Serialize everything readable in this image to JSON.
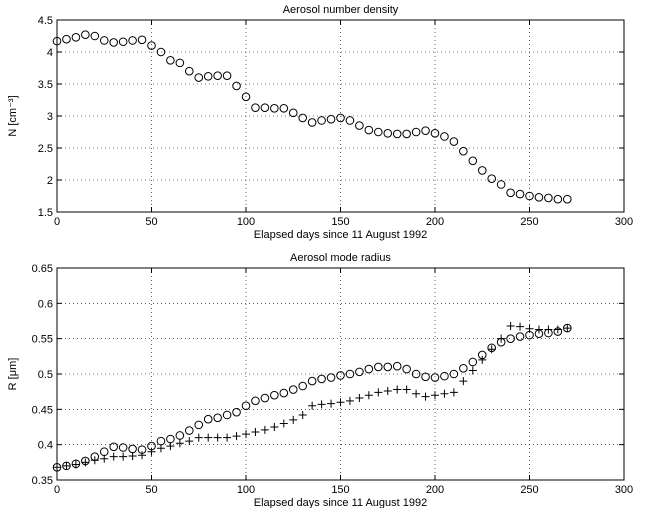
{
  "chart_data": [
    {
      "type": "scatter",
      "title": "Aerosol number density",
      "xlabel": "Elapsed days since 11 August 1992",
      "ylabel": "N [cm⁻³]",
      "x": [
        0,
        5,
        10,
        15,
        20,
        25,
        30,
        35,
        40,
        45,
        50,
        55,
        60,
        65,
        70,
        75,
        80,
        85,
        90,
        95,
        100,
        105,
        110,
        115,
        120,
        125,
        130,
        135,
        140,
        145,
        150,
        155,
        160,
        165,
        170,
        175,
        180,
        185,
        190,
        195,
        200,
        205,
        210,
        215,
        220,
        225,
        230,
        235,
        240,
        245,
        250,
        255,
        260,
        265,
        270
      ],
      "series": [
        {
          "marker": "circle",
          "color": "#000000",
          "values": [
            4.17,
            4.2,
            4.23,
            4.27,
            4.25,
            4.18,
            4.15,
            4.16,
            4.18,
            4.19,
            4.1,
            4.0,
            3.87,
            3.83,
            3.7,
            3.6,
            3.62,
            3.63,
            3.63,
            3.47,
            3.3,
            3.13,
            3.13,
            3.12,
            3.12,
            3.05,
            2.97,
            2.9,
            2.93,
            2.95,
            2.97,
            2.93,
            2.85,
            2.78,
            2.75,
            2.73,
            2.72,
            2.72,
            2.75,
            2.77,
            2.73,
            2.68,
            2.6,
            2.45,
            2.3,
            2.15,
            2.02,
            1.93,
            1.8,
            1.78,
            1.75,
            1.73,
            1.72,
            1.7,
            1.7
          ]
        }
      ],
      "xlim": [
        0,
        300
      ],
      "xticks": [
        0,
        50,
        100,
        150,
        200,
        250,
        300
      ],
      "ylim": [
        1.5,
        4.5
      ],
      "yticks": [
        1.5,
        2,
        2.5,
        3,
        3.5,
        4,
        4.5
      ],
      "grid": true
    },
    {
      "type": "scatter",
      "title": "Aerosol mode radius",
      "xlabel": "Elapsed days since 11 August 1992",
      "ylabel": "R [μm]",
      "x": [
        0,
        5,
        10,
        15,
        20,
        25,
        30,
        35,
        40,
        45,
        50,
        55,
        60,
        65,
        70,
        75,
        80,
        85,
        90,
        95,
        100,
        105,
        110,
        115,
        120,
        125,
        130,
        135,
        140,
        145,
        150,
        155,
        160,
        165,
        170,
        175,
        180,
        185,
        190,
        195,
        200,
        205,
        210,
        215,
        220,
        225,
        230,
        235,
        240,
        245,
        250,
        255,
        260,
        265,
        270
      ],
      "series": [
        {
          "marker": "circle",
          "color": "#000000",
          "values": [
            0.368,
            0.37,
            0.373,
            0.377,
            0.383,
            0.39,
            0.397,
            0.396,
            0.394,
            0.393,
            0.398,
            0.405,
            0.408,
            0.413,
            0.42,
            0.428,
            0.436,
            0.438,
            0.442,
            0.446,
            0.455,
            0.462,
            0.466,
            0.47,
            0.473,
            0.478,
            0.483,
            0.49,
            0.493,
            0.495,
            0.498,
            0.5,
            0.503,
            0.507,
            0.51,
            0.51,
            0.511,
            0.507,
            0.5,
            0.496,
            0.495,
            0.497,
            0.5,
            0.508,
            0.517,
            0.527,
            0.537,
            0.545,
            0.55,
            0.553,
            0.555,
            0.557,
            0.558,
            0.56,
            0.565
          ]
        },
        {
          "marker": "plus",
          "color": "#000000",
          "values": [
            0.368,
            0.37,
            0.372,
            0.375,
            0.378,
            0.38,
            0.383,
            0.383,
            0.384,
            0.385,
            0.39,
            0.395,
            0.398,
            0.402,
            0.405,
            0.41,
            0.41,
            0.41,
            0.41,
            0.412,
            0.415,
            0.418,
            0.421,
            0.425,
            0.43,
            0.435,
            0.442,
            0.455,
            0.457,
            0.458,
            0.46,
            0.462,
            0.466,
            0.47,
            0.474,
            0.476,
            0.478,
            0.478,
            0.472,
            0.468,
            0.47,
            0.472,
            0.474,
            0.49,
            0.505,
            0.52,
            0.535,
            0.55,
            0.568,
            0.567,
            0.564,
            0.563,
            0.563,
            0.563,
            0.565
          ]
        }
      ],
      "xlim": [
        0,
        300
      ],
      "xticks": [
        0,
        50,
        100,
        150,
        200,
        250,
        300
      ],
      "ylim": [
        0.35,
        0.65
      ],
      "yticks": [
        0.35,
        0.4,
        0.45,
        0.5,
        0.55,
        0.6,
        0.65
      ],
      "grid": true
    }
  ]
}
